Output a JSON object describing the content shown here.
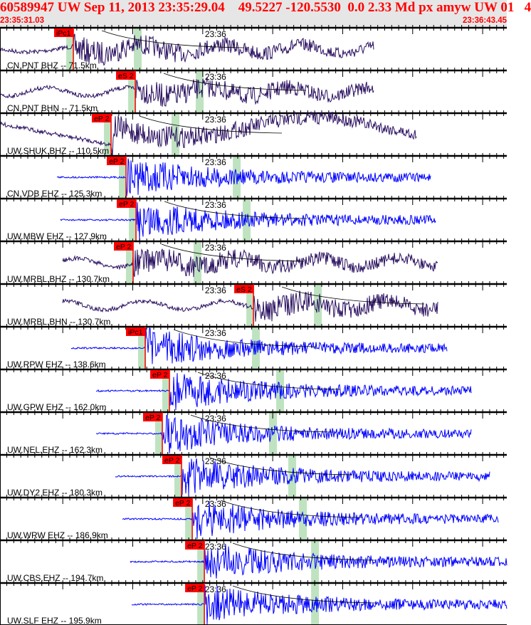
{
  "header": {
    "title": "60589947 UW Sep 11, 2013 23:35:29.04    49.5227 -120.5530  0.0 2.33 Md px amyw UW 01   4",
    "start_time": "23:35:31.03",
    "end_time": "23:36:43.45"
  },
  "colors": {
    "header_text": "#ff0000",
    "header_bg": "#e6e6e6",
    "pick": "#ff0000",
    "window": "#bfe3c0",
    "trace_broadband": "#2a1060",
    "trace_short_period": "#0000ff",
    "travel_curve": "#000000"
  },
  "chart_data": {
    "type": "line",
    "title": "60589947 UW Sep 11, 2013 23:35:29.04",
    "x_range": [
      "23:35:31.03",
      "23:36:43.45"
    ],
    "minute_label": "23:36",
    "traces": [
      {
        "label": "CN.PNT BHZ -- 71.5km",
        "phase": "iPc1",
        "pick": "23:35:41.51",
        "color": "#2a1060"
      },
      {
        "label": "CN.PNT BHN -- 71.5km",
        "phase": "eS 2",
        "pick": "23:35:50.36",
        "color": "#2a1060"
      },
      {
        "label": "UW.SHUK.BHZ -- 110.5km",
        "phase": "eP 2",
        "pick": "23:35:46.90",
        "color": "#2a1060"
      },
      {
        "label": "CN.VDB EHZ -- 125.3km",
        "phase": "eP 2",
        "pick": "23:35:49.04",
        "color": "#0000ff"
      },
      {
        "label": "UW.MBW EHZ -- 127.9km",
        "phase": "eP 2",
        "pick": "23:35:50.46",
        "color": "#0000ff"
      },
      {
        "label": "UW.MRBL.BHZ -- 130.7km",
        "phase": "eP 2",
        "pick": "23:35:50.05",
        "color": "#2a1060"
      },
      {
        "label": "UW.MRBL.BHN -- 130.7km",
        "phase": "eS 2",
        "pick": "23:36:07.25",
        "color": "#2a1060"
      },
      {
        "label": "UW.RPW EHZ -- 138.6km",
        "phase": "iPc1",
        "pick": "23:35:51.78",
        "color": "#0000ff"
      },
      {
        "label": "UW.GPW EHZ -- 162.0km",
        "phase": "eP 2",
        "pick": "23:35:55.24",
        "color": "#0000ff"
      },
      {
        "label": "UW.NEL.EHZ -- 162.3km",
        "phase": "eP 2",
        "pick": "23:35:54.22",
        "color": "#0000ff"
      },
      {
        "label": "UW.DY2 EHZ -- 180.3km",
        "phase": "eP 2",
        "pick": "23:35:56.97",
        "color": "#0000ff"
      },
      {
        "label": "UW.WRW EHZ -- 186.9km",
        "phase": "eP 2",
        "pick": "23:35:58.50",
        "color": "#0000ff"
      },
      {
        "label": "UW.CBS.EHZ -- 194.7km",
        "phase": "eP 2",
        "pick": "23:36:00.23",
        "color": "#0000ff"
      },
      {
        "label": "UW.SLF EHZ -- 195.9km",
        "phase": "eP 2",
        "pick": "23:36:00.23",
        "color": "#0000ff"
      }
    ]
  }
}
